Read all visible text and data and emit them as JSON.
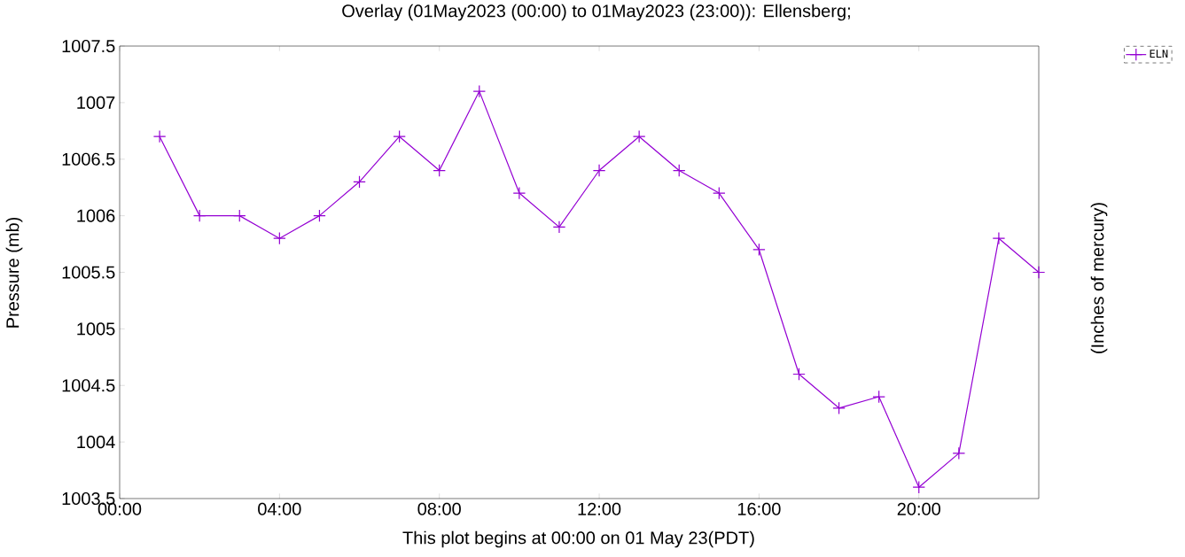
{
  "chart_data": {
    "type": "line",
    "title": "Overlay (01May2023 (00:00) to 01May2023 (23:00)): Ellensberg;",
    "xlabel": "This plot begins at 00:00 on 01 May 23(PDT)",
    "ylabel": "Pressure (mb)",
    "y2label": "(Inches of mercury)",
    "x": [
      1,
      2,
      3,
      4,
      5,
      6,
      7,
      8,
      9,
      10,
      11,
      12,
      13,
      14,
      15,
      16,
      17,
      18,
      19,
      20,
      21,
      22,
      23
    ],
    "series": [
      {
        "name": "ELN",
        "color": "#9400d3",
        "values": [
          1006.7,
          1006.0,
          1006.0,
          1005.8,
          1006.0,
          1006.3,
          1006.7,
          1006.4,
          1007.1,
          1006.2,
          1005.9,
          1006.4,
          1006.7,
          1006.4,
          1006.2,
          1005.7,
          1004.6,
          1004.3,
          1004.4,
          1003.6,
          1003.9,
          1005.8,
          1005.5
        ]
      }
    ],
    "xlim": [
      0,
      23
    ],
    "xticks": [
      {
        "value": 0,
        "label": "00:00"
      },
      {
        "value": 4,
        "label": "04:00"
      },
      {
        "value": 8,
        "label": "08:00"
      },
      {
        "value": 12,
        "label": "12:00"
      },
      {
        "value": 16,
        "label": "16:00"
      },
      {
        "value": 20,
        "label": "20:00"
      }
    ],
    "ylim": [
      1003.5,
      1007.5
    ],
    "yticks": [
      1003.5,
      1004,
      1004.5,
      1005,
      1005.5,
      1006,
      1006.5,
      1007,
      1007.5
    ],
    "legend": "top right",
    "marker": "cross",
    "line_style": "solid",
    "grid": false
  }
}
